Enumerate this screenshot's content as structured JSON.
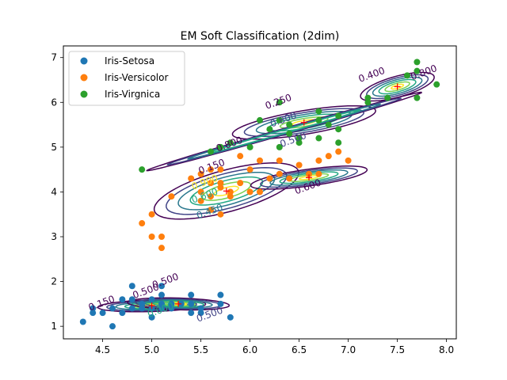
{
  "chart_data": {
    "type": "scatter",
    "title": "EM Soft Classification (2dim)",
    "xlabel": "",
    "ylabel": "",
    "xlim": [
      4.1,
      8.1
    ],
    "ylim": [
      0.72,
      7.26
    ],
    "xticks": [
      4.5,
      5.0,
      5.5,
      6.0,
      6.5,
      7.0,
      7.5,
      8.0
    ],
    "yticks": [
      1,
      2,
      3,
      4,
      5,
      6,
      7
    ],
    "xtick_labels": [
      "4.5",
      "5.0",
      "5.5",
      "6.0",
      "6.5",
      "7.0",
      "7.5",
      "8.0"
    ],
    "ytick_labels": [
      "1",
      "2",
      "3",
      "4",
      "5",
      "6",
      "7"
    ],
    "grid": false,
    "legend_position": "upper-left",
    "series": [
      {
        "name": "Iris-Setosa",
        "color": "#1f77b4",
        "points": [
          [
            4.3,
            1.1
          ],
          [
            4.4,
            1.3
          ],
          [
            4.4,
            1.4
          ],
          [
            4.5,
            1.3
          ],
          [
            4.6,
            1.0
          ],
          [
            4.6,
            1.4
          ],
          [
            4.7,
            1.3
          ],
          [
            4.7,
            1.6
          ],
          [
            4.8,
            1.4
          ],
          [
            4.8,
            1.6
          ],
          [
            4.8,
            1.9
          ],
          [
            4.9,
            1.4
          ],
          [
            4.9,
            1.5
          ],
          [
            5.0,
            1.2
          ],
          [
            5.0,
            1.4
          ],
          [
            5.0,
            1.6
          ],
          [
            5.1,
            1.4
          ],
          [
            5.1,
            1.5
          ],
          [
            5.1,
            1.7
          ],
          [
            5.1,
            1.9
          ],
          [
            5.2,
            1.4
          ],
          [
            5.2,
            1.5
          ],
          [
            5.3,
            1.5
          ],
          [
            5.4,
            1.3
          ],
          [
            5.4,
            1.5
          ],
          [
            5.4,
            1.7
          ],
          [
            5.5,
            1.3
          ],
          [
            5.5,
            1.4
          ],
          [
            5.7,
            1.5
          ],
          [
            5.7,
            1.7
          ],
          [
            5.8,
            1.2
          ]
        ]
      },
      {
        "name": "Iris-Versicolor",
        "color": "#ff7f0e",
        "points": [
          [
            4.9,
            3.3
          ],
          [
            5.0,
            3.0
          ],
          [
            5.0,
            3.5
          ],
          [
            5.1,
            3.0
          ],
          [
            5.2,
            3.9
          ],
          [
            5.4,
            4.3
          ],
          [
            5.5,
            3.8
          ],
          [
            5.5,
            4.0
          ],
          [
            5.5,
            4.4
          ],
          [
            5.6,
            3.6
          ],
          [
            5.6,
            3.9
          ],
          [
            5.6,
            4.2
          ],
          [
            5.6,
            4.5
          ],
          [
            5.7,
            3.5
          ],
          [
            5.7,
            4.1
          ],
          [
            5.7,
            4.2
          ],
          [
            5.7,
            4.5
          ],
          [
            5.8,
            3.9
          ],
          [
            5.8,
            4.0
          ],
          [
            5.9,
            4.2
          ],
          [
            5.9,
            4.8
          ],
          [
            6.0,
            4.0
          ],
          [
            6.0,
            4.5
          ],
          [
            6.1,
            4.0
          ],
          [
            6.1,
            4.7
          ],
          [
            6.2,
            4.3
          ],
          [
            6.3,
            4.4
          ],
          [
            6.3,
            4.7
          ],
          [
            6.4,
            4.3
          ],
          [
            6.5,
            4.6
          ],
          [
            6.6,
            4.4
          ],
          [
            6.7,
            4.4
          ],
          [
            6.7,
            4.7
          ],
          [
            6.8,
            4.8
          ],
          [
            6.9,
            4.9
          ],
          [
            7.0,
            4.7
          ],
          [
            5.1,
            2.75
          ]
        ]
      },
      {
        "name": "Iris-Virgnica",
        "color": "#2ca02c",
        "points": [
          [
            4.9,
            4.5
          ],
          [
            5.6,
            4.9
          ],
          [
            5.7,
            5.0
          ],
          [
            5.8,
            5.1
          ],
          [
            6.0,
            5.0
          ],
          [
            6.1,
            5.6
          ],
          [
            6.2,
            5.4
          ],
          [
            6.3,
            5.0
          ],
          [
            6.3,
            5.6
          ],
          [
            6.3,
            6.0
          ],
          [
            6.4,
            5.3
          ],
          [
            6.4,
            5.5
          ],
          [
            6.5,
            5.1
          ],
          [
            6.5,
            5.2
          ],
          [
            6.7,
            5.2
          ],
          [
            6.7,
            5.6
          ],
          [
            6.7,
            5.8
          ],
          [
            6.8,
            5.5
          ],
          [
            6.9,
            5.1
          ],
          [
            6.9,
            5.4
          ],
          [
            6.9,
            5.7
          ],
          [
            7.2,
            6.0
          ],
          [
            7.2,
            6.1
          ],
          [
            7.4,
            6.1
          ],
          [
            7.6,
            6.6
          ],
          [
            7.7,
            6.1
          ],
          [
            7.7,
            6.7
          ],
          [
            7.7,
            6.9
          ],
          [
            7.9,
            6.4
          ]
        ]
      }
    ],
    "component_means": [
      [
        5.0,
        1.46
      ],
      [
        5.27,
        1.5
      ],
      [
        5.76,
        4.02
      ],
      [
        6.6,
        4.32
      ],
      [
        6.55,
        5.55
      ],
      [
        7.5,
        6.35
      ]
    ],
    "contour_levels": [
      0.15,
      0.3,
      0.45,
      0.6,
      0.75,
      0.9
    ],
    "contour_colors": [
      "#440154",
      "#414487",
      "#2a788e",
      "#22a884",
      "#7ad151",
      "#fde725"
    ],
    "contour_labels": [
      {
        "text": "0.150",
        "x": 5.62,
        "y": 4.5,
        "color": "#440154"
      },
      {
        "text": "0.450",
        "x": 5.6,
        "y": 3.5,
        "color": "#2a788e"
      },
      {
        "text": "0.900",
        "x": 5.55,
        "y": 4.15,
        "color": "#fde725"
      },
      {
        "text": "0.600",
        "x": 5.55,
        "y": 3.85,
        "color": "#22a884"
      },
      {
        "text": "0.600",
        "x": 6.6,
        "y": 4.05,
        "color": "#440154"
      },
      {
        "text": "0.400",
        "x": 7.25,
        "y": 6.55,
        "color": "#440154"
      },
      {
        "text": "0.800",
        "x": 7.78,
        "y": 6.6,
        "color": "#440154"
      },
      {
        "text": "0.250",
        "x": 6.3,
        "y": 5.95,
        "color": "#440154"
      },
      {
        "text": "0.800",
        "x": 6.35,
        "y": 5.55,
        "color": "#414487"
      },
      {
        "text": "0.500",
        "x": 6.45,
        "y": 5.1,
        "color": "#414487"
      },
      {
        "text": "0.800",
        "x": 5.8,
        "y": 5.0,
        "color": "#440154"
      },
      {
        "text": "0.500",
        "x": 5.15,
        "y": 1.95,
        "color": "#440154"
      },
      {
        "text": "0.500",
        "x": 4.95,
        "y": 1.72,
        "color": "#440154"
      },
      {
        "text": "0.150",
        "x": 4.5,
        "y": 1.45,
        "color": "#440154"
      },
      {
        "text": "0.500",
        "x": 5.6,
        "y": 1.2,
        "color": "#414487"
      },
      {
        "text": "0.000",
        "x": 5.1,
        "y": 1.3,
        "color": "#22a884"
      }
    ]
  }
}
